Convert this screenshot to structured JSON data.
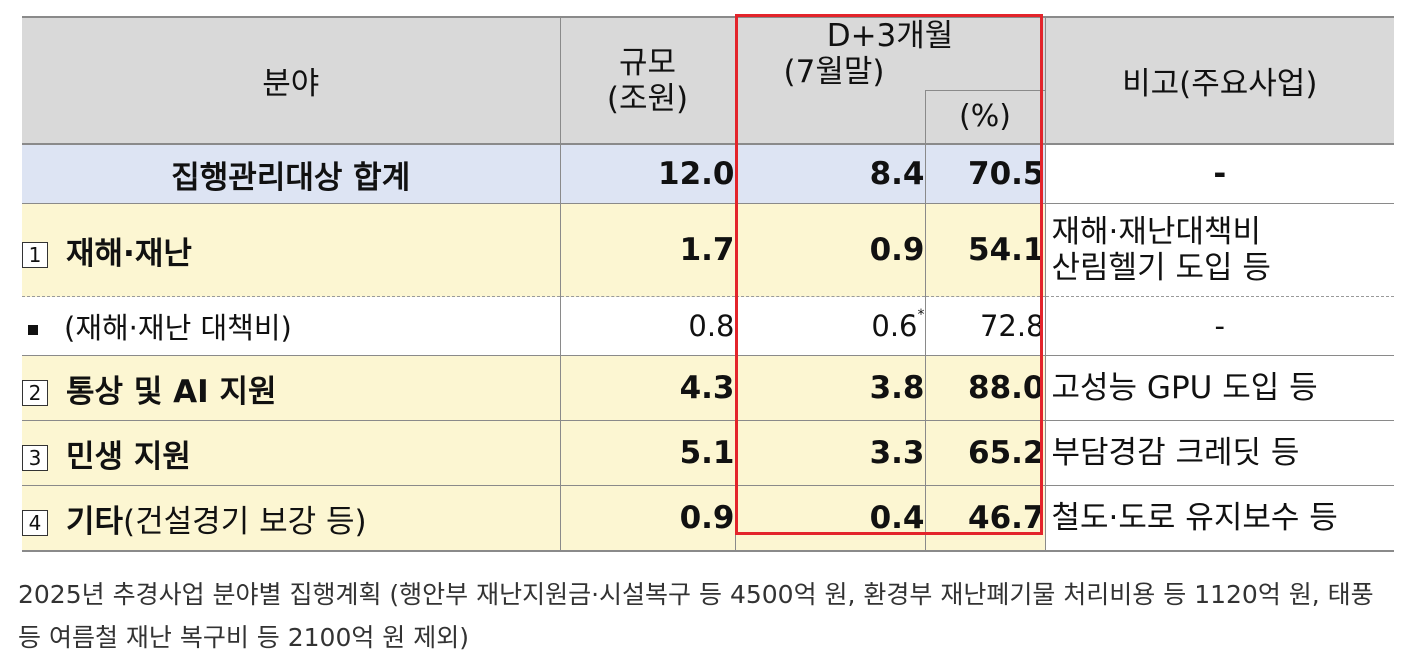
{
  "table": {
    "header": {
      "field": "분야",
      "scale_line1": "규모",
      "scale_line2": "(조원)",
      "d3_line1": "D+3개월",
      "d3_line2": "(7월말)",
      "pct": "(%)",
      "remarks": "비고(주요사업)"
    },
    "rows": [
      {
        "type": "total",
        "label": "집행관리대상 합계",
        "scale": "12.0",
        "exec": "8.4",
        "pct": "70.5",
        "note": "-"
      },
      {
        "type": "item",
        "num": "1",
        "label": "재해·재난",
        "scale": "1.7",
        "exec": "0.9",
        "pct": "54.1",
        "note_line1": "재해·재난대책비",
        "note_line2": "산림헬기 도입 등"
      },
      {
        "type": "sub",
        "label": "(재해·재난 대책비)",
        "scale": "0.8",
        "exec": "0.6",
        "exec_mark": "*",
        "pct": "72.8",
        "note": "-"
      },
      {
        "type": "item",
        "num": "2",
        "label": "통상 및 AI 지원",
        "scale": "4.3",
        "exec": "3.8",
        "pct": "88.0",
        "note": "고성능 GPU 도입 등"
      },
      {
        "type": "item",
        "num": "3",
        "label": "민생 지원",
        "scale": "5.1",
        "exec": "3.3",
        "pct": "65.2",
        "note": "부담경감 크레딧 등"
      },
      {
        "type": "item",
        "num": "4",
        "label": "기타",
        "label_extra": "(건설경기 보강 등)",
        "scale": "0.9",
        "exec": "0.4",
        "pct": "46.7",
        "note": "철도·도로 유지보수 등"
      }
    ]
  },
  "caption": "2025년 추경사업 분야별 집행계획 (행안부 재난지원금·시설복구 등 4500억 원, 환경부 재난폐기물 처리비용 등 1120억 원, 태풍 등 여름철 재난 복구비 등 2100억 원 제외)",
  "colors": {
    "highlight_border": "#e3242b",
    "total_row": "#dde4f3",
    "item_row": "#fcf6d2",
    "header": "#d9d9d9"
  }
}
